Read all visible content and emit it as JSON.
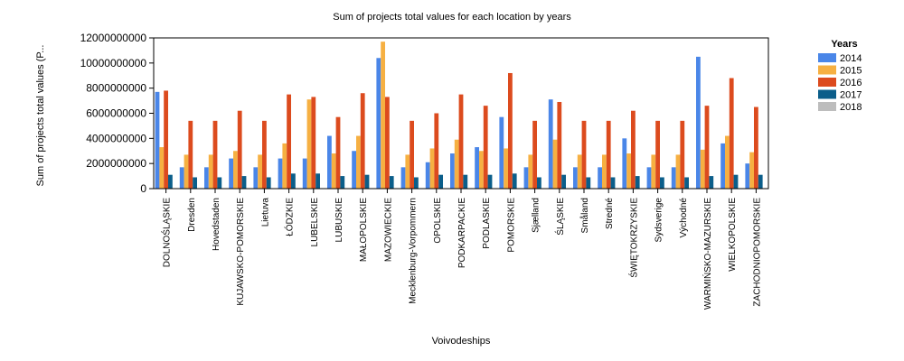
{
  "chart_data": {
    "type": "bar",
    "title": "Sum of projects total values for each location by years",
    "xlabel": "Voivodeships",
    "ylabel": "Sum of projects total values (P...",
    "ylim": [
      0,
      12000000000
    ],
    "yticks": [
      "0",
      "2000000000",
      "4000000000",
      "6000000000",
      "8000000000",
      "10000000000",
      "12000000000"
    ],
    "ytick_values": [
      0,
      2000000000,
      4000000000,
      6000000000,
      8000000000,
      10000000000,
      12000000000
    ],
    "grid": false,
    "legend_position": "top-right",
    "legend_title": "Years",
    "categories": [
      "DOLNOŚLĄSKIE",
      "Dresden",
      "Hovedstaden",
      "KUJAWSKO-POMORSKIE",
      "Lietuva",
      "ŁÓDZKIE",
      "LUBELSKIE",
      "LUBUSKIE",
      "MAŁOPOLSKIE",
      "MAZOWIECKIE",
      "Mecklenburg-Vorpommern",
      "OPOLSKIE",
      "PODKARPACKIE",
      "PODLASKIE",
      "POMORSKIE",
      "Sjælland",
      "ŚLĄSKIE",
      "Småland",
      "Stredné",
      "ŚWIĘTOKRZYSKIE",
      "Sydsverige",
      "Východné",
      "WARMIŃSKO-MAZURSKIE",
      "WIELKOPOLSKIE",
      "ZACHODNIOPOMORSKIE"
    ],
    "series": [
      {
        "name": "2014",
        "color": "#4a86e8",
        "values": [
          7700000000,
          1700000000,
          1700000000,
          2400000000,
          1700000000,
          2400000000,
          2400000000,
          4200000000,
          3000000000,
          10400000000,
          1700000000,
          2100000000,
          2800000000,
          3300000000,
          5700000000,
          1700000000,
          7100000000,
          1700000000,
          1700000000,
          4000000000,
          1700000000,
          1700000000,
          10500000000,
          3600000000,
          2000000000
        ]
      },
      {
        "name": "2015",
        "color": "#f6b042",
        "values": [
          3300000000,
          2700000000,
          2700000000,
          3000000000,
          2700000000,
          3600000000,
          7100000000,
          2800000000,
          4200000000,
          11700000000,
          2700000000,
          3200000000,
          3900000000,
          3000000000,
          3200000000,
          2700000000,
          3900000000,
          2700000000,
          2700000000,
          2800000000,
          2700000000,
          2700000000,
          3100000000,
          4200000000,
          2900000000
        ]
      },
      {
        "name": "2016",
        "color": "#dc4b1e",
        "values": [
          7800000000,
          5400000000,
          5400000000,
          6200000000,
          5400000000,
          7500000000,
          7300000000,
          5700000000,
          7600000000,
          7300000000,
          5400000000,
          6000000000,
          7500000000,
          6600000000,
          9200000000,
          5400000000,
          6900000000,
          5400000000,
          5400000000,
          6200000000,
          5400000000,
          5400000000,
          6600000000,
          8800000000,
          6500000000
        ]
      },
      {
        "name": "2017",
        "color": "#0b5e8a",
        "values": [
          1100000000,
          900000000,
          900000000,
          1000000000,
          900000000,
          1200000000,
          1200000000,
          1000000000,
          1100000000,
          1000000000,
          900000000,
          1100000000,
          1100000000,
          1100000000,
          1200000000,
          900000000,
          1100000000,
          900000000,
          900000000,
          1000000000,
          900000000,
          900000000,
          1000000000,
          1100000000,
          1100000000
        ]
      },
      {
        "name": "2018",
        "color": "#bdbdbd",
        "values": [
          0,
          0,
          0,
          0,
          0,
          0,
          0,
          0,
          0,
          0,
          0,
          0,
          0,
          0,
          0,
          0,
          0,
          0,
          0,
          0,
          0,
          0,
          0,
          0,
          0
        ]
      }
    ]
  }
}
